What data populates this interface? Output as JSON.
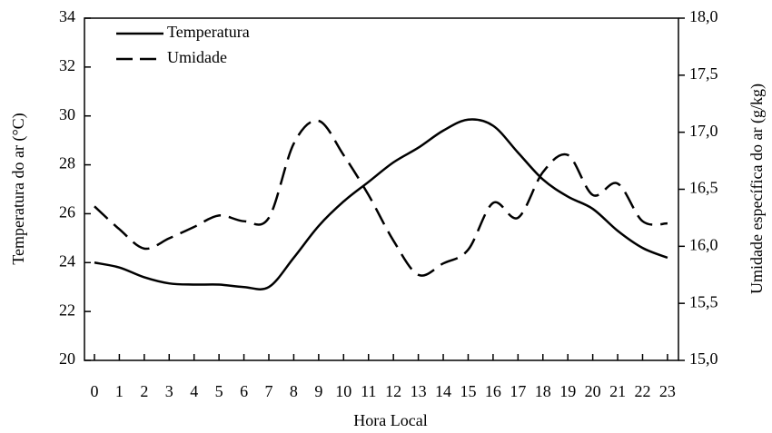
{
  "chart_data": {
    "type": "line",
    "x_label": "Hora Local",
    "y_label": "Temperatura do ar (°C)",
    "y2_label": "Umidade específica do ar (g/kg)",
    "x": [
      0,
      1,
      2,
      3,
      4,
      5,
      6,
      7,
      8,
      9,
      10,
      11,
      12,
      13,
      14,
      15,
      16,
      17,
      18,
      19,
      20,
      21,
      22,
      23
    ],
    "xlim": [
      -0.4,
      23.44
    ],
    "xticks": [
      0,
      1,
      2,
      3,
      4,
      5,
      6,
      7,
      8,
      9,
      10,
      11,
      12,
      13,
      14,
      15,
      16,
      17,
      18,
      19,
      20,
      21,
      22,
      23
    ],
    "ylim": [
      20,
      34
    ],
    "yticks": [
      20,
      22,
      24,
      26,
      28,
      30,
      32,
      34
    ],
    "y2lim": [
      15,
      18
    ],
    "y2ticks": [
      {
        "value": 15,
        "label": "15,0"
      },
      {
        "value": 15.5,
        "label": "15,5"
      },
      {
        "value": 16,
        "label": "16,0"
      },
      {
        "value": 16.5,
        "label": "16,5"
      },
      {
        "value": 17,
        "label": "17,0"
      },
      {
        "value": 17.5,
        "label": "17,5"
      },
      {
        "value": 18,
        "label": "18,0"
      }
    ],
    "legend": "upper left",
    "series": [
      {
        "name": "Temperatura",
        "color": "#000000",
        "dash": "solid",
        "values": [
          24.0,
          23.8,
          23.4,
          23.15,
          23.1,
          23.1,
          23.0,
          23.0,
          24.2,
          25.5,
          26.5,
          27.3,
          28.1,
          28.7,
          29.4,
          29.85,
          29.6,
          28.5,
          27.4,
          26.7,
          26.2,
          25.3,
          24.6,
          24.2
        ]
      },
      {
        "name": "Umidade",
        "color": "#000000",
        "dash": "dashed",
        "axis": "y2",
        "values": [
          16.35,
          16.15,
          15.98,
          16.07,
          16.17,
          16.27,
          16.22,
          16.25,
          16.9,
          17.1,
          16.8,
          16.45,
          16.05,
          15.75,
          15.85,
          15.97,
          16.38,
          16.25,
          16.65,
          16.8,
          16.45,
          16.55,
          16.22,
          16.2
        ]
      }
    ]
  }
}
